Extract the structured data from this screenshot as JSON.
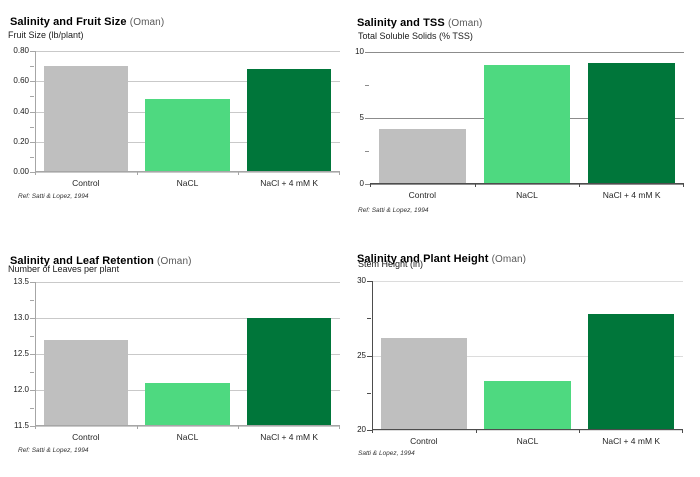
{
  "palette": {
    "control": "#bfbfbf",
    "nacl": "#4ed980",
    "nacl_k": "#00763a"
  },
  "chart_data": [
    {
      "type": "bar",
      "title": "Salinity and Fruit Size",
      "region": "(Oman)",
      "ylabel": "Fruit Size (lb/plant)",
      "ref": "Ref: Satti & Lopez, 1994",
      "categories": [
        "Control",
        "NaCL",
        "NaCl + 4 mM K"
      ],
      "values": [
        0.7,
        0.48,
        0.68
      ],
      "bar_colors": [
        "control",
        "nacl",
        "nacl_k"
      ],
      "ylim": [
        0,
        0.8
      ],
      "yticks": [
        {
          "value": 0.8,
          "label": "0.80"
        },
        {
          "value": 0.6,
          "label": "0.60"
        },
        {
          "value": 0.4,
          "label": "0.40"
        },
        {
          "value": 0.2,
          "label": "0.20"
        },
        {
          "value": 0.0,
          "label": "0.00"
        }
      ],
      "minor_yticks": [
        0.1,
        0.3,
        0.5,
        0.7
      ],
      "grid": true,
      "legend": "none"
    },
    {
      "type": "bar",
      "title": "Salinity and TSS",
      "region": "(Oman)",
      "ylabel": "Total Soluble Solids (% TSS)",
      "ref": "Ref: Satti & Lopez, 1994",
      "categories": [
        "Control",
        "NaCL",
        "NaCl + 4 mM K"
      ],
      "values": [
        4.2,
        9.0,
        9.2
      ],
      "bar_colors": [
        "control",
        "nacl",
        "nacl_k"
      ],
      "ylim": [
        0,
        10
      ],
      "yticks": [
        {
          "value": 10,
          "label": "10"
        },
        {
          "value": 5,
          "label": "5"
        },
        {
          "value": 0,
          "label": "0"
        }
      ],
      "minor_yticks": [
        2.5,
        7.5
      ],
      "grid": true,
      "legend": "none"
    },
    {
      "type": "bar",
      "title": "Salinity and Leaf Retention",
      "region": "(Oman)",
      "ylabel": "Number of Leaves per plant",
      "ref": "Ref: Satti & Lopez, 1994",
      "categories": [
        "Control",
        "NaCL",
        "NaCl + 4 mM K"
      ],
      "values": [
        12.7,
        12.1,
        13.0
      ],
      "bar_colors": [
        "control",
        "nacl",
        "nacl_k"
      ],
      "ylim": [
        11.5,
        13.5
      ],
      "yticks": [
        {
          "value": 13.5,
          "label": "13.5"
        },
        {
          "value": 13.0,
          "label": "13.0"
        },
        {
          "value": 12.5,
          "label": "12.5"
        },
        {
          "value": 12.0,
          "label": "12.0"
        },
        {
          "value": 11.5,
          "label": "11.5"
        }
      ],
      "minor_yticks": [
        11.75,
        12.25,
        12.75,
        13.25
      ],
      "grid": true,
      "legend": "none"
    },
    {
      "type": "bar",
      "title": "Salinity and Plant Height",
      "region": "(Oman)",
      "ylabel": "Stem Height (in)",
      "ref": "Satti & Lopez, 1994",
      "categories": [
        "Control",
        "NaCL",
        "NaCl + 4 mM K"
      ],
      "values": [
        26.2,
        23.3,
        27.8
      ],
      "bar_colors": [
        "control",
        "nacl",
        "nacl_k"
      ],
      "ylim": [
        20,
        30
      ],
      "yticks": [
        {
          "value": 30,
          "label": "30"
        },
        {
          "value": 25,
          "label": "25"
        },
        {
          "value": 20,
          "label": "20"
        }
      ],
      "minor_yticks": [
        22.5,
        27.5
      ],
      "grid": true,
      "legend": "none"
    }
  ]
}
